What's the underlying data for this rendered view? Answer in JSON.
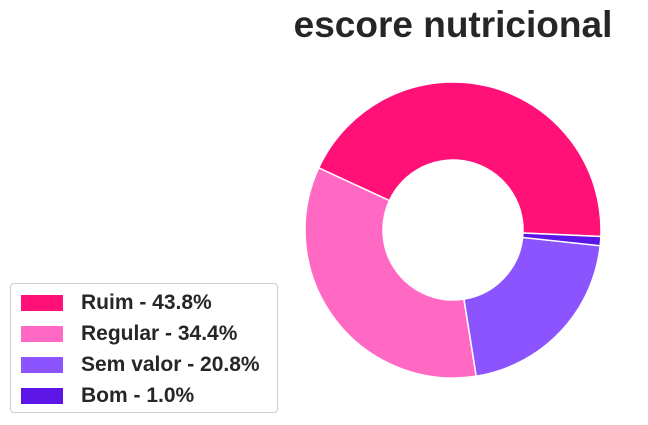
{
  "chart_data": {
    "type": "pie",
    "title": "escore nutricional",
    "categories": [
      "Ruim",
      "Regular",
      "Sem valor",
      "Bom"
    ],
    "values": [
      43.8,
      34.4,
      20.8,
      1.0
    ],
    "colors": [
      "#ff1177",
      "#ff69c4",
      "#8c54ff",
      "#5b16e6"
    ],
    "legend_labels": [
      "Ruim - 43.8%",
      "Regular - 34.4%",
      "Sem valor - 20.8%",
      "Bom - 1.0%"
    ],
    "legend_position": "lower-left",
    "donut": true
  }
}
